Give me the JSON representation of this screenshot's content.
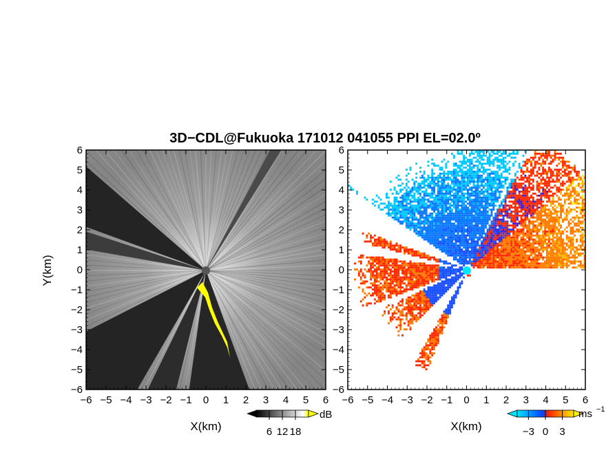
{
  "title": "3D−CDL@Fukuoka 171012 041055 PPI EL=02.0º",
  "chart_data": [
    {
      "type": "heatmap",
      "panel": "left",
      "xlabel": "X(km)",
      "ylabel": "Y(km)",
      "xlim": [
        -6,
        6
      ],
      "ylim": [
        -6,
        6
      ],
      "xticks": [
        "−6",
        "−5",
        "−4",
        "−3",
        "−2",
        "−1",
        "0",
        "1",
        "2",
        "3",
        "4",
        "5",
        "6"
      ],
      "yticks": [
        "6",
        "5",
        "4",
        "3",
        "2",
        "1",
        "0",
        "−1",
        "−2",
        "−3",
        "−4",
        "−5",
        "−6"
      ],
      "colorbar": {
        "unit": "dB",
        "ticks": [
          "6",
          "12",
          "18"
        ],
        "range": [
          0,
          24
        ],
        "colors": [
          "#000000",
          "#ffffff",
          "#ffff00"
        ]
      },
      "radar_site": [
        0,
        0
      ]
    },
    {
      "type": "heatmap",
      "panel": "right",
      "xlabel": "X(km)",
      "ylabel": "",
      "xlim": [
        -6,
        6
      ],
      "ylim": [
        -6,
        6
      ],
      "xticks": [
        "−6",
        "−5",
        "−4",
        "−3",
        "−2",
        "−1",
        "0",
        "1",
        "2",
        "3",
        "4",
        "5",
        "6"
      ],
      "yticks": [
        "6",
        "5",
        "4",
        "3",
        "2",
        "1",
        "0",
        "−1",
        "−2",
        "−3",
        "−4",
        "−5",
        "−6"
      ],
      "colorbar": {
        "unit": "ms",
        "unit_exponent": "−1",
        "ticks": [
          "−3",
          "0",
          "3"
        ],
        "range": [
          -5,
          5
        ],
        "colors": [
          "#00e5ff",
          "#0044ff",
          "#ff2200",
          "#ffee00"
        ]
      },
      "radar_site": [
        0,
        0
      ]
    }
  ],
  "colors": {
    "approaching": "#1a4fff",
    "receding": "#ff4a00",
    "strong_echo": "#ffff00",
    "site_marker_left": "#555555",
    "site_marker_right": "#00e8ff"
  }
}
